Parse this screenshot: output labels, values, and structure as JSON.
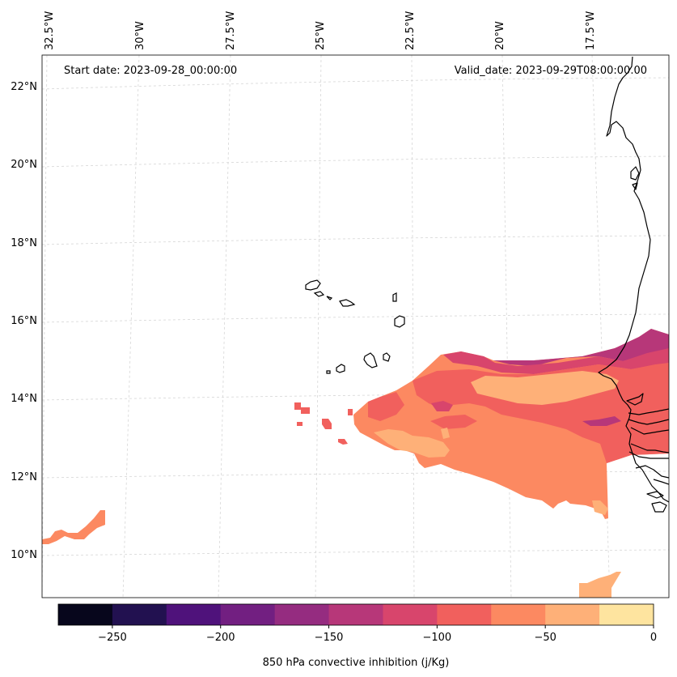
{
  "annotations": {
    "start_date": "Start date: 2023-09-28_00:00:00",
    "valid_date": "Valid_date: 2023-09-29T08:00:00.00"
  },
  "lon_labels": [
    "32.5°W",
    "30°W",
    "27.5°W",
    "25°W",
    "22.5°W",
    "20°W",
    "17.5°W"
  ],
  "lat_labels": [
    "22°N",
    "20°N",
    "18°N",
    "16°N",
    "14°N",
    "12°N",
    "10°N"
  ],
  "colorbar": {
    "label": "850 hPa convective inhibition (j/Kg)",
    "tick_labels": [
      "−250",
      "−200",
      "−150",
      "−100",
      "−50",
      "0"
    ],
    "levels": [
      -275,
      -250,
      -225,
      -200,
      -175,
      -150,
      -125,
      -100,
      -75,
      -50,
      -25,
      0
    ],
    "colors": [
      "#07061c",
      "#221150",
      "#4f127b",
      "#721f81",
      "#952c80",
      "#b73779",
      "#d8456c",
      "#f1605d",
      "#fc8961",
      "#feb078",
      "#fee49f"
    ]
  },
  "field_colors": {
    "very_low": "#b73779",
    "low": "#d8456c",
    "mid": "#f1605d",
    "high": "#fc8961",
    "very_high": "#feb078"
  }
}
